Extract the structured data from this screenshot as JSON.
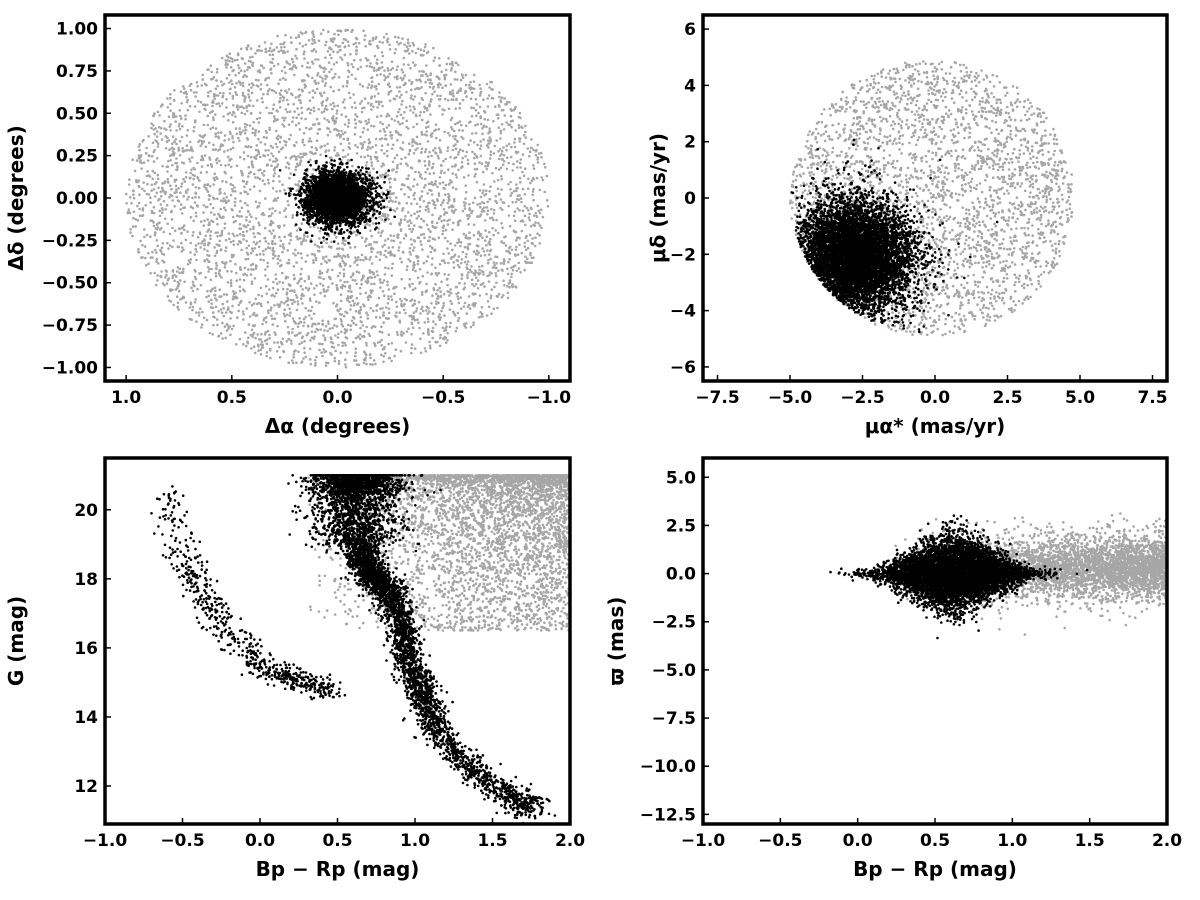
{
  "colors": {
    "field": "#a6a6a6",
    "member": "#000000",
    "frame": "#000000"
  },
  "chart_data": [
    {
      "id": "sky",
      "type": "scatter",
      "xlabel": "Δα (degrees)",
      "ylabel": "Δδ (degrees)",
      "xlim": [
        1.1,
        -1.1
      ],
      "ylim": [
        -1.08,
        1.08
      ],
      "x_inverted": true,
      "xticks": [
        1.0,
        0.5,
        0.0,
        -0.5,
        -1.0
      ],
      "xtick_labels": [
        "1.0",
        "0.5",
        "0.0",
        "−0.5",
        "−1.0"
      ],
      "yticks": [
        -1.0,
        -0.75,
        -0.5,
        -0.25,
        0.0,
        0.25,
        0.5,
        0.75,
        1.0
      ],
      "ytick_labels": [
        "−1.00",
        "−0.75",
        "−0.50",
        "−0.25",
        "0.00",
        "0.25",
        "0.50",
        "0.75",
        "1.00"
      ],
      "series": [
        {
          "color": "#a6a6a6",
          "n": 4500,
          "distribution": "uniform disk",
          "center": [
            0,
            0
          ],
          "radius": 1.0
        },
        {
          "color": "#000000",
          "n": 3200,
          "distribution": "gaussian cluster",
          "center": [
            0.0,
            0.0
          ],
          "sigma": [
            0.075,
            0.075
          ],
          "clip_radius": 0.37
        }
      ]
    },
    {
      "id": "proper-motion",
      "type": "scatter",
      "xlabel": "μα* (mas/yr)",
      "ylabel": "μδ (mas/yr)",
      "xlim": [
        -8.0,
        8.0
      ],
      "ylim": [
        -6.5,
        6.5
      ],
      "xticks": [
        -7.5,
        -5.0,
        -2.5,
        0.0,
        2.5,
        5.0,
        7.5
      ],
      "xtick_labels": [
        "−7.5",
        "−5.0",
        "−2.5",
        "0.0",
        "2.5",
        "5.0",
        "7.5"
      ],
      "yticks": [
        -6,
        -4,
        -2,
        0,
        2,
        4,
        6
      ],
      "ytick_labels": [
        "−6",
        "−4",
        "−2",
        "0",
        "2",
        "4",
        "6"
      ],
      "series": [
        {
          "color": "#a6a6a6",
          "n": 3000,
          "distribution": "disk",
          "center": [
            -0.1,
            0.0
          ],
          "radius": 4.9,
          "concentration_toward": [
            -2.7,
            -2.2
          ]
        },
        {
          "color": "#000000",
          "n": 6500,
          "distribution": "gaussian clump clipped by circle",
          "center": [
            -2.8,
            -2.1
          ],
          "sigma": [
            0.9,
            0.9
          ],
          "clip_center": [
            -0.1,
            0.0
          ],
          "clip_radius": 4.85
        }
      ]
    },
    {
      "id": "cmd-g",
      "type": "scatter",
      "xlabel": "Bp − Rp (mag)",
      "ylabel": "G (mag)",
      "xlim": [
        -1.0,
        2.0
      ],
      "ylim": [
        10.9,
        21.5
      ],
      "xticks": [
        -1.0,
        -0.5,
        0.0,
        0.5,
        1.0,
        1.5,
        2.0
      ],
      "xtick_labels": [
        "−1.0",
        "−0.5",
        "0.0",
        "0.5",
        "1.0",
        "1.5",
        "2.0"
      ],
      "yticks": [
        12,
        14,
        16,
        18,
        20
      ],
      "ytick_labels": [
        "12",
        "14",
        "16",
        "18",
        "20"
      ],
      "series": [
        {
          "color": "#a6a6a6",
          "n": 4000,
          "distribution": "faint field",
          "x_range": [
            0.3,
            2.0
          ],
          "y_range": [
            16.5,
            21.0
          ]
        },
        {
          "color": "#000000",
          "n": 5200,
          "distribution": "main sequence and turn-off",
          "ridge": [
            [
              0.62,
              21.0
            ],
            [
              0.62,
              19.5
            ],
            [
              0.66,
              18.5
            ],
            [
              0.75,
              18.0
            ],
            [
              0.85,
              17.5
            ],
            [
              0.92,
              16.5
            ],
            [
              0.97,
              15.5
            ],
            [
              1.04,
              14.8
            ],
            [
              1.1,
              14.0
            ],
            [
              1.25,
              13.0
            ],
            [
              1.45,
              12.2
            ],
            [
              1.65,
              11.6
            ],
            [
              1.77,
              11.4
            ]
          ]
        },
        {
          "color": "#000000",
          "n": 600,
          "distribution": "blue stragglers / horizontal branch",
          "ridge": [
            [
              -0.6,
              20.6
            ],
            [
              -0.5,
              18.6
            ],
            [
              -0.35,
              17.5
            ],
            [
              -0.2,
              16.5
            ],
            [
              0.0,
              15.5
            ],
            [
              0.15,
              15.2
            ],
            [
              0.3,
              15.0
            ],
            [
              0.45,
              14.7
            ]
          ]
        }
      ]
    },
    {
      "id": "parallax",
      "type": "scatter",
      "xlabel": "Bp − Rp (mag)",
      "ylabel": "ϖ (mas)",
      "xlim": [
        -1.0,
        2.0
      ],
      "ylim": [
        -13.0,
        6.0
      ],
      "xticks": [
        -1.0,
        -0.5,
        0.0,
        0.5,
        1.0,
        1.5,
        2.0
      ],
      "xtick_labels": [
        "−1.0",
        "−0.5",
        "0.0",
        "0.5",
        "1.0",
        "1.5",
        "2.0"
      ],
      "yticks": [
        -12.5,
        -10.0,
        -7.5,
        -5.0,
        -2.5,
        0.0,
        2.5,
        5.0
      ],
      "ytick_labels": [
        "−12.5",
        "−10.0",
        "−7.5",
        "−5.0",
        "−2.5",
        "0.0",
        "2.5",
        "5.0"
      ],
      "series": [
        {
          "color": "#a6a6a6",
          "n": 4000,
          "distribution": "field stars",
          "x_range": [
            0.2,
            2.0
          ],
          "y_center": 0.3,
          "y_sigma": 0.9
        },
        {
          "color": "#000000",
          "n": 6000,
          "distribution": "members",
          "x_center": 0.62,
          "x_sigma": 0.22,
          "y_center": 0.0,
          "y_sigma": 0.7
        }
      ]
    }
  ]
}
